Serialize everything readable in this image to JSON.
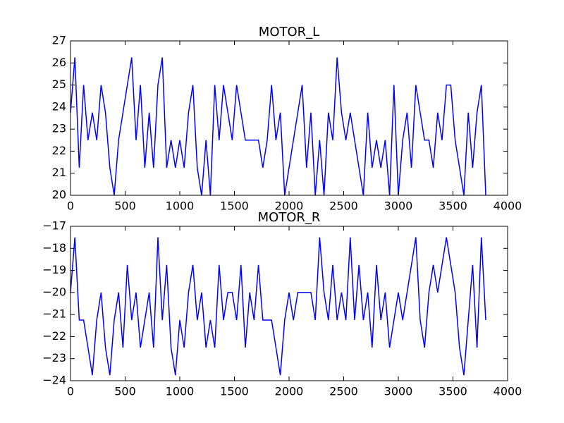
{
  "chart_data": [
    {
      "type": "line",
      "title": "MOTOR_L",
      "x": [
        0,
        40,
        80,
        120,
        160,
        200,
        240,
        280,
        320,
        360,
        400,
        440,
        480,
        520,
        560,
        600,
        640,
        680,
        720,
        760,
        800,
        840,
        880,
        920,
        960,
        1000,
        1040,
        1080,
        1120,
        1160,
        1200,
        1240,
        1280,
        1320,
        1360,
        1400,
        1440,
        1480,
        1520,
        1560,
        1600,
        1640,
        1680,
        1720,
        1760,
        1800,
        1840,
        1880,
        1920,
        1960,
        2000,
        2040,
        2080,
        2120,
        2160,
        2200,
        2240,
        2280,
        2320,
        2360,
        2400,
        2440,
        2480,
        2520,
        2560,
        2600,
        2640,
        2680,
        2720,
        2760,
        2800,
        2840,
        2880,
        2920,
        2960,
        3000,
        3040,
        3080,
        3120,
        3160,
        3200,
        3240,
        3280,
        3320,
        3360,
        3400,
        3440,
        3480,
        3520,
        3560,
        3600,
        3640,
        3680,
        3720,
        3760,
        3800
      ],
      "values": [
        23.75,
        26.25,
        21.25,
        25,
        22.5,
        23.75,
        22.5,
        25,
        23.75,
        21.25,
        20,
        22.5,
        23.75,
        25,
        26.25,
        22.5,
        25,
        21.25,
        23.75,
        21.25,
        25,
        26.25,
        21.25,
        22.5,
        21.25,
        22.5,
        21.25,
        23.75,
        25,
        21.25,
        20,
        22.5,
        20,
        25,
        22.5,
        25,
        23.75,
        22.5,
        25,
        23.75,
        22.5,
        22.5,
        22.5,
        22.5,
        21.25,
        22.5,
        25,
        22.5,
        23.75,
        20,
        21.25,
        22.5,
        23.75,
        25,
        21.25,
        23.75,
        20,
        22.5,
        20,
        23.75,
        22.5,
        26.25,
        23.75,
        22.5,
        23.75,
        22.5,
        21.25,
        20,
        23.75,
        21.25,
        22.5,
        21.25,
        22.5,
        20,
        25,
        20,
        22.5,
        23.75,
        21.25,
        25,
        23.75,
        22.5,
        22.5,
        21.25,
        23.75,
        22.5,
        25,
        25,
        22.5,
        21.25,
        20,
        23.75,
        21.25,
        23.75,
        25,
        20
      ],
      "color": "#0000ff",
      "xlim": [
        0,
        4000
      ],
      "xticks": [
        0,
        500,
        1000,
        1500,
        2000,
        2500,
        3000,
        3500,
        4000
      ],
      "ylim": [
        20,
        27
      ],
      "yticks": [
        20,
        21,
        22,
        23,
        24,
        25,
        26,
        27
      ]
    },
    {
      "type": "line",
      "title": "MOTOR_R",
      "x": [
        0,
        40,
        80,
        120,
        160,
        200,
        240,
        280,
        320,
        360,
        400,
        440,
        480,
        520,
        560,
        600,
        640,
        680,
        720,
        760,
        800,
        840,
        880,
        920,
        960,
        1000,
        1040,
        1080,
        1120,
        1160,
        1200,
        1240,
        1280,
        1320,
        1360,
        1400,
        1440,
        1480,
        1520,
        1560,
        1600,
        1640,
        1680,
        1720,
        1760,
        1800,
        1840,
        1880,
        1920,
        1960,
        2000,
        2040,
        2080,
        2120,
        2160,
        2200,
        2240,
        2280,
        2320,
        2360,
        2400,
        2440,
        2480,
        2520,
        2560,
        2600,
        2640,
        2680,
        2720,
        2760,
        2800,
        2840,
        2880,
        2920,
        2960,
        3000,
        3040,
        3080,
        3120,
        3160,
        3200,
        3240,
        3280,
        3320,
        3360,
        3400,
        3440,
        3480,
        3520,
        3560,
        3600,
        3640,
        3680,
        3720,
        3760,
        3800
      ],
      "values": [
        -20,
        -17.5,
        -21.25,
        -21.25,
        -22.5,
        -23.75,
        -21.25,
        -20,
        -22.5,
        -23.75,
        -21.25,
        -20,
        -22.5,
        -18.75,
        -21.25,
        -20,
        -22.5,
        -21.25,
        -20,
        -22.5,
        -17.5,
        -21.25,
        -18.75,
        -22.5,
        -23.75,
        -21.25,
        -22.5,
        -20,
        -18.75,
        -21.25,
        -20,
        -22.5,
        -21.25,
        -22.5,
        -18.75,
        -21.25,
        -20,
        -20,
        -21.25,
        -18.75,
        -22.5,
        -20,
        -21.25,
        -18.75,
        -21.25,
        -21.25,
        -21.25,
        -22.5,
        -23.75,
        -21.25,
        -20,
        -21.25,
        -20,
        -20,
        -20,
        -20,
        -21.25,
        -17.5,
        -20,
        -21.25,
        -18.75,
        -21.25,
        -20,
        -21.25,
        -17.5,
        -21.25,
        -18.75,
        -21.25,
        -20,
        -22.5,
        -18.75,
        -21.25,
        -20,
        -22.5,
        -21.25,
        -20,
        -21.25,
        -20,
        -18.75,
        -17.5,
        -21.25,
        -22.5,
        -20,
        -18.75,
        -20,
        -18.75,
        -17.5,
        -18.75,
        -20,
        -22.5,
        -23.75,
        -21.25,
        -18.75,
        -22.5,
        -17.5,
        -21.25
      ],
      "color": "#0000ff",
      "xlim": [
        0,
        4000
      ],
      "xticks": [
        0,
        500,
        1000,
        1500,
        2000,
        2500,
        3000,
        3500,
        4000
      ],
      "ylim": [
        -24,
        -17
      ],
      "yticks": [
        {
          "value": -24,
          "label": "−24"
        },
        {
          "value": -23,
          "label": "−23"
        },
        {
          "value": -22,
          "label": "−22"
        },
        {
          "value": -21,
          "label": "−21"
        },
        {
          "value": -20,
          "label": "−20"
        },
        {
          "value": -19,
          "label": "−19"
        },
        {
          "value": -18,
          "label": "−18"
        },
        {
          "value": -17,
          "label": "−17"
        }
      ]
    }
  ]
}
